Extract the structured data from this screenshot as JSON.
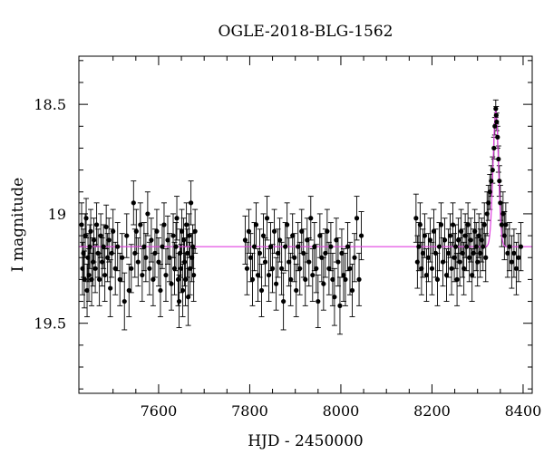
{
  "chart_data": {
    "type": "scatter",
    "title": "OGLE-2018-BLG-1562",
    "xlabel": "HJD - 2450000",
    "ylabel": "I magnitude",
    "xlim": [
      7425,
      8420
    ],
    "ylim": [
      19.82,
      18.28
    ],
    "y_inverted": true,
    "x_ticks": [
      7600,
      7800,
      8000,
      8200,
      8400
    ],
    "x_tick_labels": [
      "7600",
      "7800",
      "8000",
      "8200",
      "8400"
    ],
    "y_ticks": [
      18.5,
      19,
      19.5
    ],
    "y_tick_labels": [
      "18.5",
      "19",
      "19.5"
    ],
    "grid": false,
    "baseline": 19.15,
    "colors": {
      "data": "#000000",
      "model": "#e040e0"
    },
    "series": [
      {
        "type": "points_with_errorbars",
        "points": [
          [
            7431,
            19.05,
            0.1
          ],
          [
            7433,
            19.25,
            0.12
          ],
          [
            7435,
            19.18,
            0.11
          ],
          [
            7437,
            19.3,
            0.13
          ],
          [
            7439,
            19.1,
            0.1
          ],
          [
            7441,
            19.02,
            0.09
          ],
          [
            7443,
            19.35,
            0.12
          ],
          [
            7445,
            19.2,
            0.11
          ],
          [
            7447,
            19.28,
            0.12
          ],
          [
            7449,
            19.15,
            0.1
          ],
          [
            7451,
            19.08,
            0.1
          ],
          [
            7453,
            19.3,
            0.12
          ],
          [
            7456,
            19.22,
            0.11
          ],
          [
            7458,
            19.12,
            0.1
          ],
          [
            7461,
            19.25,
            0.11
          ],
          [
            7464,
            19.05,
            0.1
          ],
          [
            7467,
            19.18,
            0.11
          ],
          [
            7470,
            19.3,
            0.12
          ],
          [
            7473,
            19.1,
            0.1
          ],
          [
            7476,
            19.22,
            0.11
          ],
          [
            7479,
            19.15,
            0.1
          ],
          [
            7482,
            19.28,
            0.12
          ],
          [
            7485,
            19.06,
            0.1
          ],
          [
            7488,
            19.2,
            0.11
          ],
          [
            7491,
            19.12,
            0.1
          ],
          [
            7494,
            19.34,
            0.13
          ],
          [
            7497,
            19.18,
            0.11
          ],
          [
            7500,
            19.08,
            0.1
          ],
          [
            7505,
            19.25,
            0.12
          ],
          [
            7510,
            19.15,
            0.11
          ],
          [
            7515,
            19.3,
            0.12
          ],
          [
            7520,
            19.2,
            0.11
          ],
          [
            7525,
            19.4,
            0.13
          ],
          [
            7530,
            19.1,
            0.1
          ],
          [
            7535,
            19.35,
            0.12
          ],
          [
            7540,
            19.25,
            0.11
          ],
          [
            7545,
            18.95,
            0.1
          ],
          [
            7548,
            19.18,
            0.11
          ],
          [
            7551,
            19.08,
            0.1
          ],
          [
            7555,
            19.22,
            0.11
          ],
          [
            7560,
            19.05,
            0.1
          ],
          [
            7564,
            19.28,
            0.12
          ],
          [
            7568,
            19.15,
            0.11
          ],
          [
            7572,
            19.2,
            0.11
          ],
          [
            7576,
            19.0,
            0.1
          ],
          [
            7580,
            19.25,
            0.12
          ],
          [
            7584,
            19.12,
            0.1
          ],
          [
            7588,
            19.3,
            0.12
          ],
          [
            7592,
            19.18,
            0.11
          ],
          [
            7596,
            19.08,
            0.1
          ],
          [
            7600,
            19.22,
            0.11
          ],
          [
            7604,
            19.35,
            0.12
          ],
          [
            7608,
            19.15,
            0.1
          ],
          [
            7612,
            19.05,
            0.1
          ],
          [
            7616,
            19.28,
            0.12
          ],
          [
            7620,
            19.12,
            0.11
          ],
          [
            7624,
            19.2,
            0.11
          ],
          [
            7628,
            19.32,
            0.12
          ],
          [
            7632,
            19.1,
            0.1
          ],
          [
            7635,
            19.25,
            0.12
          ],
          [
            7638,
            19.15,
            0.11
          ],
          [
            7640,
            19.02,
            0.1
          ],
          [
            7643,
            19.3,
            0.12
          ],
          [
            7645,
            19.4,
            0.12
          ],
          [
            7647,
            19.18,
            0.11
          ],
          [
            7649,
            19.25,
            0.11
          ],
          [
            7651,
            19.08,
            0.1
          ],
          [
            7653,
            19.35,
            0.12
          ],
          [
            7655,
            19.12,
            0.1
          ],
          [
            7657,
            19.22,
            0.11
          ],
          [
            7659,
            19.3,
            0.12
          ],
          [
            7661,
            19.05,
            0.1
          ],
          [
            7663,
            19.18,
            0.11
          ],
          [
            7665,
            19.38,
            0.13
          ],
          [
            7667,
            19.1,
            0.1
          ],
          [
            7669,
            19.25,
            0.12
          ],
          [
            7671,
            18.95,
            0.1
          ],
          [
            7673,
            19.2,
            0.11
          ],
          [
            7675,
            19.15,
            0.1
          ],
          [
            7677,
            19.28,
            0.12
          ],
          [
            7680,
            19.08,
            0.1
          ],
          [
            7790,
            19.12,
            0.11
          ],
          [
            7794,
            19.25,
            0.12
          ],
          [
            7798,
            19.08,
            0.1
          ],
          [
            7802,
            19.2,
            0.11
          ],
          [
            7806,
            19.3,
            0.12
          ],
          [
            7810,
            19.15,
            0.11
          ],
          [
            7814,
            19.05,
            0.1
          ],
          [
            7818,
            19.28,
            0.12
          ],
          [
            7822,
            19.18,
            0.11
          ],
          [
            7826,
            19.35,
            0.12
          ],
          [
            7830,
            19.1,
            0.1
          ],
          [
            7834,
            19.22,
            0.11
          ],
          [
            7838,
            19.02,
            0.1
          ],
          [
            7842,
            19.28,
            0.12
          ],
          [
            7846,
            19.15,
            0.11
          ],
          [
            7850,
            19.25,
            0.11
          ],
          [
            7854,
            19.08,
            0.1
          ],
          [
            7858,
            19.32,
            0.12
          ],
          [
            7862,
            19.18,
            0.11
          ],
          [
            7866,
            19.12,
            0.1
          ],
          [
            7870,
            19.25,
            0.12
          ],
          [
            7874,
            19.4,
            0.13
          ],
          [
            7878,
            19.15,
            0.11
          ],
          [
            7882,
            19.05,
            0.1
          ],
          [
            7886,
            19.22,
            0.11
          ],
          [
            7890,
            19.3,
            0.12
          ],
          [
            7894,
            19.1,
            0.1
          ],
          [
            7898,
            19.2,
            0.11
          ],
          [
            7902,
            19.35,
            0.12
          ],
          [
            7906,
            19.15,
            0.11
          ],
          [
            7910,
            19.25,
            0.12
          ],
          [
            7914,
            19.08,
            0.1
          ],
          [
            7918,
            19.18,
            0.11
          ],
          [
            7922,
            19.3,
            0.12
          ],
          [
            7926,
            19.12,
            0.1
          ],
          [
            7930,
            19.22,
            0.11
          ],
          [
            7934,
            19.02,
            0.1
          ],
          [
            7938,
            19.28,
            0.12
          ],
          [
            7942,
            19.15,
            0.11
          ],
          [
            7946,
            19.25,
            0.11
          ],
          [
            7950,
            19.4,
            0.12
          ],
          [
            7954,
            19.1,
            0.1
          ],
          [
            7958,
            19.2,
            0.11
          ],
          [
            7962,
            19.32,
            0.12
          ],
          [
            7966,
            19.18,
            0.11
          ],
          [
            7970,
            19.08,
            0.1
          ],
          [
            7974,
            19.25,
            0.12
          ],
          [
            7978,
            19.15,
            0.11
          ],
          [
            7982,
            19.3,
            0.12
          ],
          [
            7986,
            19.38,
            0.13
          ],
          [
            7990,
            19.12,
            0.1
          ],
          [
            7994,
            19.22,
            0.11
          ],
          [
            7998,
            19.42,
            0.13
          ],
          [
            8002,
            19.18,
            0.11
          ],
          [
            8006,
            19.28,
            0.12
          ],
          [
            8010,
            19.3,
            0.12
          ],
          [
            8015,
            19.15,
            0.11
          ],
          [
            8020,
            19.25,
            0.12
          ],
          [
            8025,
            19.35,
            0.12
          ],
          [
            8030,
            19.2,
            0.11
          ],
          [
            8035,
            19.02,
            0.1
          ],
          [
            8040,
            19.3,
            0.12
          ],
          [
            8045,
            19.1,
            0.11
          ],
          [
            8165,
            19.02,
            0.11
          ],
          [
            8168,
            19.22,
            0.12
          ],
          [
            8171,
            19.15,
            0.11
          ],
          [
            8174,
            19.05,
            0.1
          ],
          [
            8177,
            19.25,
            0.12
          ],
          [
            8180,
            19.18,
            0.11
          ],
          [
            8184,
            19.1,
            0.1
          ],
          [
            8188,
            19.28,
            0.12
          ],
          [
            8192,
            19.2,
            0.11
          ],
          [
            8196,
            19.12,
            0.1
          ],
          [
            8200,
            19.25,
            0.12
          ],
          [
            8204,
            19.08,
            0.1
          ],
          [
            8208,
            19.18,
            0.11
          ],
          [
            8212,
            19.3,
            0.12
          ],
          [
            8216,
            19.15,
            0.11
          ],
          [
            8220,
            19.05,
            0.1
          ],
          [
            8224,
            19.22,
            0.11
          ],
          [
            8228,
            19.12,
            0.1
          ],
          [
            8232,
            19.28,
            0.12
          ],
          [
            8236,
            19.18,
            0.11
          ],
          [
            8240,
            19.1,
            0.1
          ],
          [
            8243,
            19.25,
            0.12
          ],
          [
            8246,
            19.05,
            0.1
          ],
          [
            8249,
            19.2,
            0.11
          ],
          [
            8252,
            19.15,
            0.1
          ],
          [
            8255,
            19.3,
            0.12
          ],
          [
            8258,
            19.12,
            0.1
          ],
          [
            8261,
            19.22,
            0.11
          ],
          [
            8264,
            19.08,
            0.1
          ],
          [
            8267,
            19.18,
            0.11
          ],
          [
            8270,
            19.25,
            0.12
          ],
          [
            8273,
            19.1,
            0.1
          ],
          [
            8276,
            19.15,
            0.11
          ],
          [
            8279,
            19.05,
            0.1
          ],
          [
            8282,
            19.2,
            0.11
          ],
          [
            8285,
            19.12,
            0.1
          ],
          [
            8288,
            19.28,
            0.12
          ],
          [
            8291,
            19.18,
            0.11
          ],
          [
            8294,
            19.08,
            0.1
          ],
          [
            8297,
            19.15,
            0.11
          ],
          [
            8300,
            19.22,
            0.11
          ],
          [
            8303,
            19.1,
            0.1
          ],
          [
            8306,
            19.18,
            0.11
          ],
          [
            8309,
            19.12,
            0.1
          ],
          [
            8312,
            19.15,
            0.11
          ],
          [
            8315,
            19.05,
            0.1
          ],
          [
            8318,
            19.2,
            0.11
          ],
          [
            8321,
            19.0,
            0.1
          ],
          [
            8324,
            18.95,
            0.08
          ],
          [
            8327,
            18.9,
            0.08
          ],
          [
            8330,
            18.85,
            0.07
          ],
          [
            8333,
            18.8,
            0.06
          ],
          [
            8336,
            18.7,
            0.05
          ],
          [
            8338,
            18.6,
            0.04
          ],
          [
            8340,
            18.52,
            0.04
          ],
          [
            8341,
            18.55,
            0.04
          ],
          [
            8342,
            18.58,
            0.04
          ],
          [
            8344,
            18.65,
            0.05
          ],
          [
            8346,
            18.75,
            0.06
          ],
          [
            8348,
            18.85,
            0.07
          ],
          [
            8350,
            18.95,
            0.08
          ],
          [
            8353,
            19.05,
            0.1
          ],
          [
            8356,
            19.0,
            0.1
          ],
          [
            8359,
            19.1,
            0.11
          ],
          [
            8362,
            19.05,
            0.1
          ],
          [
            8366,
            19.18,
            0.11
          ],
          [
            8370,
            19.15,
            0.11
          ],
          [
            8375,
            19.22,
            0.12
          ],
          [
            8380,
            19.18,
            0.11
          ],
          [
            8385,
            19.25,
            0.12
          ],
          [
            8390,
            19.2,
            0.11
          ],
          [
            8395,
            19.15,
            0.11
          ]
        ]
      }
    ],
    "model_curve": {
      "baseline": 19.15,
      "peak_mag": 18.53,
      "t0": 8340,
      "tE": 6
    }
  }
}
